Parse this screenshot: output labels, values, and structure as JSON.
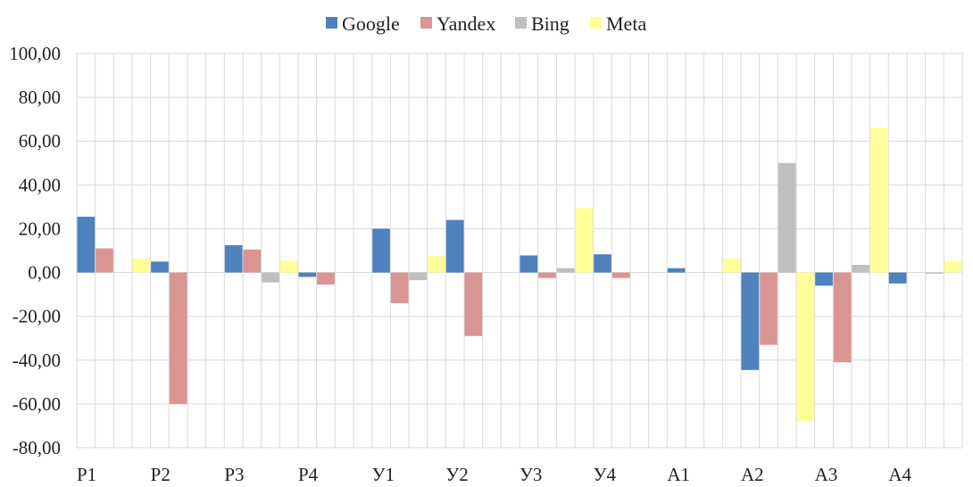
{
  "chart_data": {
    "type": "bar",
    "categories": [
      "P1",
      "P2",
      "P3",
      "P4",
      "У1",
      "У2",
      "У3",
      "У4",
      "A1",
      "A2",
      "A3",
      "A4"
    ],
    "ylim": [
      -80,
      100
    ],
    "yticks": [
      "100,00",
      "80,00",
      "60,00",
      "40,00",
      "20,00",
      "0,00",
      "-20,00",
      "-40,00",
      "-60,00",
      "-80,00"
    ],
    "grid": true,
    "legend_position": "top",
    "series": [
      {
        "name": "Google",
        "color": "#4f81bd",
        "values": [
          25.5,
          5.0,
          12.5,
          -2.0,
          20.0,
          24.0,
          7.8,
          8.3,
          2.0,
          -44.5,
          -6.0,
          -5.0
        ]
      },
      {
        "name": "Yandex",
        "color": "#d99594",
        "values": [
          11.0,
          -60.0,
          10.5,
          -5.5,
          -14.0,
          -29.0,
          -2.5,
          -2.5,
          0.0,
          -33.0,
          -41.0,
          0.0
        ]
      },
      {
        "name": "Bing",
        "color": "#bfbfbf",
        "values": [
          0.0,
          0.0,
          -4.5,
          0.0,
          -3.5,
          0.0,
          2.0,
          0.0,
          0.0,
          50.0,
          3.5,
          -0.5
        ]
      },
      {
        "name": "Meta",
        "color": "#ffff99",
        "values": [
          6.5,
          0.0,
          5.5,
          0.0,
          7.5,
          0.0,
          29.5,
          0.0,
          6.5,
          -68.0,
          66.0,
          5.5
        ]
      }
    ]
  }
}
